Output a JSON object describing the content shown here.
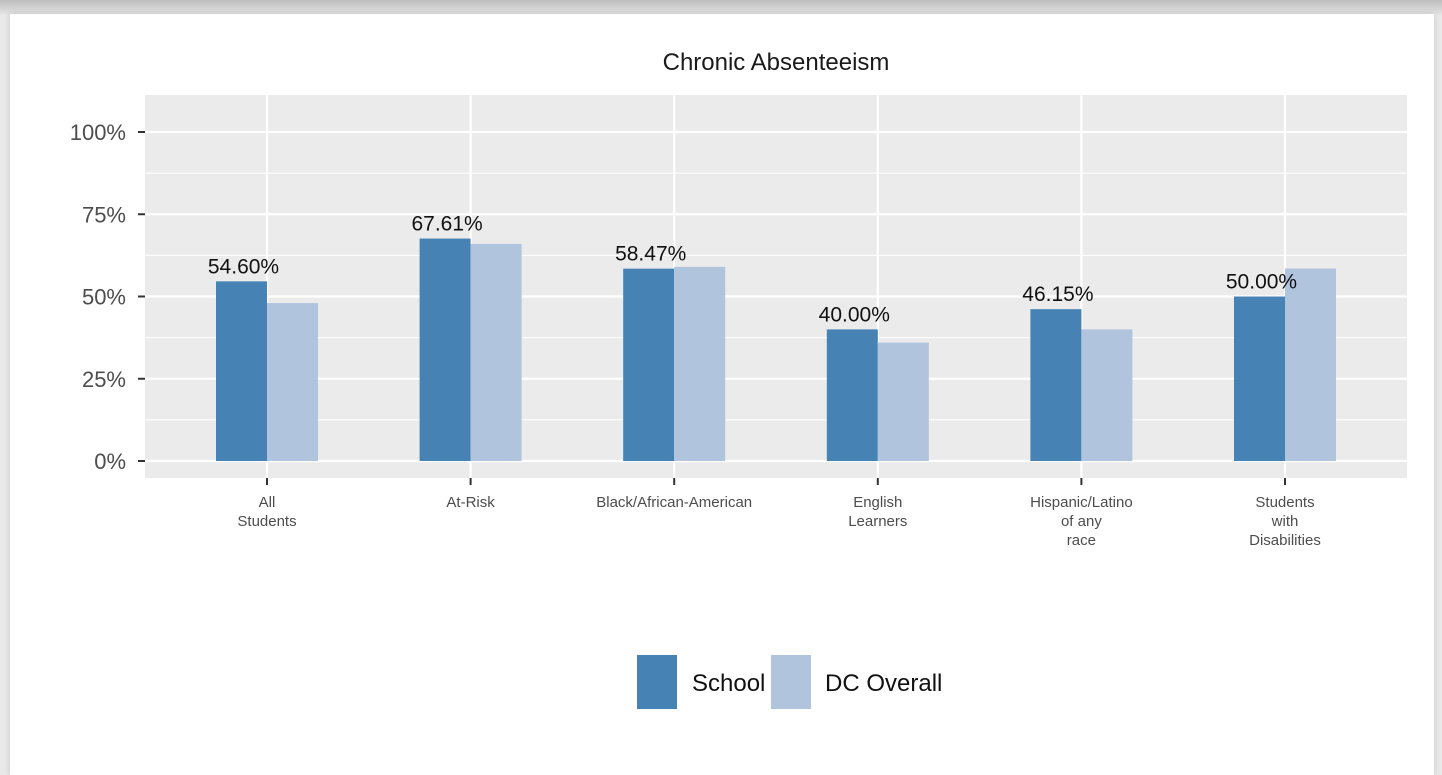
{
  "chart_data": {
    "type": "bar",
    "title": "Chronic Absenteeism",
    "xlabel": "",
    "ylabel": "",
    "categories": [
      [
        "All",
        "Students"
      ],
      [
        "At-Risk"
      ],
      [
        "Black/African-American"
      ],
      [
        "English",
        "Learners"
      ],
      [
        "Hispanic/Latino",
        "of any",
        "race"
      ],
      [
        "Students",
        "with",
        "Disabilities"
      ]
    ],
    "series": [
      {
        "name": "School",
        "color": "#4682b4",
        "values": [
          54.6,
          67.61,
          58.47,
          40.0,
          46.15,
          50.0
        ],
        "labels": [
          "54.60%",
          "67.61%",
          "58.47%",
          "40.00%",
          "46.15%",
          "50.00%"
        ]
      },
      {
        "name": "DC Overall",
        "color": "#b0c4de",
        "values": [
          48.0,
          66.0,
          59.0,
          36.0,
          40.0,
          58.5
        ]
      }
    ],
    "ylim": [
      0,
      110
    ],
    "yticks": [
      {
        "value": 0,
        "label": "0%"
      },
      {
        "value": 25,
        "label": "25%"
      },
      {
        "value": 50,
        "label": "50%"
      },
      {
        "value": 75,
        "label": "75%"
      },
      {
        "value": 100,
        "label": "100%"
      }
    ],
    "grid": true,
    "legend_position": "bottom",
    "panel_color": "#ebebeb",
    "grid_color": "#ffffff"
  }
}
